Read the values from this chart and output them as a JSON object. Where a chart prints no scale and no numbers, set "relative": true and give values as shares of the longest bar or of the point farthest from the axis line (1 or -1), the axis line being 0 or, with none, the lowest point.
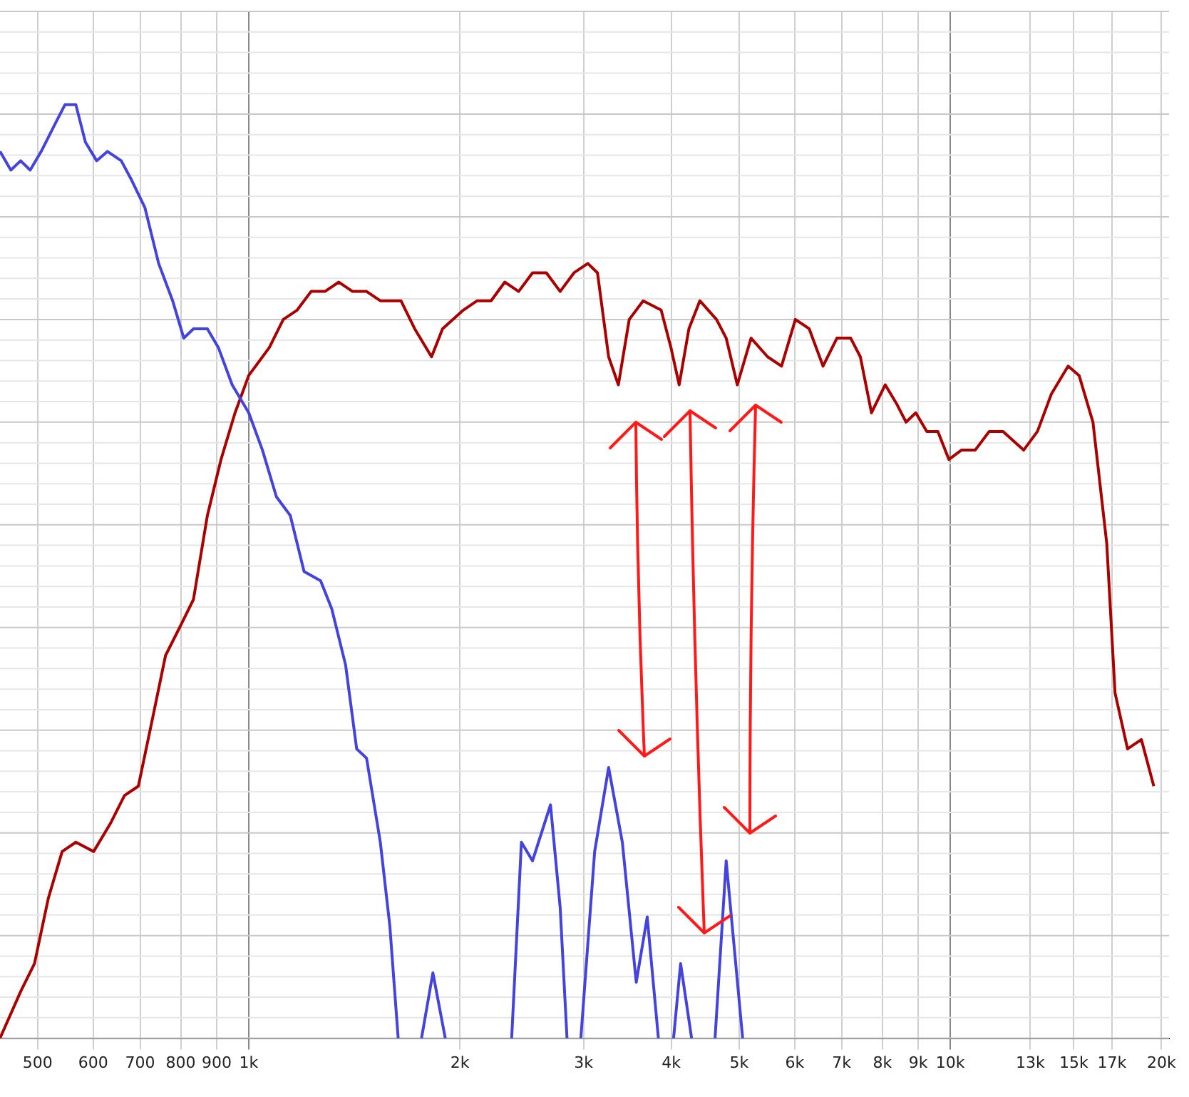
{
  "chart_data": {
    "type": "line",
    "relative": true,
    "log": "x",
    "grid": true,
    "legend": false,
    "marker": "none",
    "line_style": "solid",
    "xlim": [
      442,
      20500
    ],
    "xticks": [
      500,
      600,
      700,
      800,
      900,
      {
        "value": 1000,
        "label": "1k"
      },
      {
        "value": 2000,
        "label": "2k"
      },
      {
        "value": 3000,
        "label": "3k"
      },
      {
        "value": 4000,
        "label": "4k"
      },
      {
        "value": 5000,
        "label": "5k"
      },
      {
        "value": 6000,
        "label": "6k"
      },
      {
        "value": 7000,
        "label": "7k"
      },
      {
        "value": 8000,
        "label": "8k"
      },
      {
        "value": 9000,
        "label": "9k"
      },
      {
        "value": 10000,
        "label": "10k"
      },
      {
        "value": 13000,
        "label": "13k"
      },
      {
        "value": 15000,
        "label": "15k"
      },
      {
        "value": 17000,
        "label": "17k"
      },
      {
        "value": 20000,
        "label": "20k"
      }
    ],
    "series": [
      {
        "color": "#4444dd",
        "x": [
          442,
          458,
          473,
          488,
          506,
          530,
          547,
          567,
          585,
          607,
          629,
          658,
          680,
          711,
          744,
          779,
          808,
          834,
          873,
          905,
          947,
          1000,
          1046,
          1095,
          1146,
          1199,
          1266,
          1313,
          1374,
          1425,
          1472,
          1540,
          1589,
          1633,
          1694,
          1763,
          1830,
          1906,
          2126,
          2370,
          2447,
          2538,
          2692,
          2779,
          2842,
          2908,
          2974,
          3112,
          3258,
          3408,
          3567,
          3698,
          3836,
          3942,
          4032,
          4126,
          4278,
          4436,
          4620,
          4792,
          5058
        ],
        "values": [
          0.95,
          0.93,
          0.94,
          0.93,
          0.95,
          0.98,
          1.0,
          1.0,
          0.96,
          0.94,
          0.95,
          0.94,
          0.92,
          0.89,
          0.83,
          0.79,
          0.75,
          0.76,
          0.76,
          0.74,
          0.7,
          0.67,
          0.63,
          0.58,
          0.56,
          0.5,
          0.49,
          0.46,
          0.4,
          0.31,
          0.3,
          0.21,
          0.12,
          0,
          null,
          0,
          0.07,
          0,
          null,
          0,
          0.21,
          0.19,
          0.25,
          0.14,
          0,
          null,
          0,
          0.2,
          0.29,
          0.21,
          0.06,
          0.13,
          0,
          null,
          0,
          0.08,
          0,
          null,
          0,
          0.19,
          0
        ]
      },
      {
        "color": "#aa0000",
        "x": [
          442,
          473,
          495,
          518,
          542,
          567,
          601,
          635,
          665,
          696,
          728,
          761,
          797,
          834,
          873,
          913,
          956,
          1000,
          1070,
          1120,
          1172,
          1227,
          1284,
          1344,
          1406,
          1472,
          1540,
          1648,
          1724,
          1822,
          1889,
          2022,
          2116,
          2215,
          2317,
          2425,
          2538,
          2656,
          2779,
          2908,
          3043,
          3141,
          3258,
          3364,
          3486,
          3649,
          3871,
          3997,
          4107,
          4240,
          4395,
          4642,
          4792,
          4970,
          5200,
          5490,
          5746,
          6014,
          6293,
          6585,
          6892,
          7211,
          7443,
          7720,
          8077,
          8379,
          8648,
          8928,
          9258,
          9600,
          9954,
          10370,
          10850,
          11360,
          11890,
          12720,
          13310,
          13930,
          14720,
          15260,
          15970,
          16710,
          17170,
          17890,
          18720,
          19500
        ],
        "values": [
          0.0,
          0.05,
          0.08,
          0.15,
          0.2,
          0.21,
          0.2,
          0.23,
          0.26,
          0.27,
          0.34,
          0.41,
          0.44,
          0.47,
          0.56,
          0.62,
          0.67,
          0.71,
          0.74,
          0.77,
          0.78,
          0.8,
          0.8,
          0.81,
          0.8,
          0.8,
          0.79,
          0.79,
          0.76,
          0.73,
          0.76,
          0.78,
          0.79,
          0.79,
          0.81,
          0.8,
          0.82,
          0.82,
          0.8,
          0.82,
          0.83,
          0.82,
          0.73,
          0.7,
          0.77,
          0.79,
          0.78,
          0.74,
          0.7,
          0.76,
          0.79,
          0.77,
          0.75,
          0.7,
          0.75,
          0.73,
          0.72,
          0.77,
          0.76,
          0.72,
          0.75,
          0.75,
          0.73,
          0.67,
          0.7,
          0.68,
          0.66,
          0.67,
          0.65,
          0.65,
          0.62,
          0.63,
          0.63,
          0.65,
          0.65,
          0.63,
          0.65,
          0.69,
          0.72,
          0.71,
          0.66,
          0.53,
          0.37,
          0.31,
          0.32,
          0.27
        ]
      }
    ]
  }
}
